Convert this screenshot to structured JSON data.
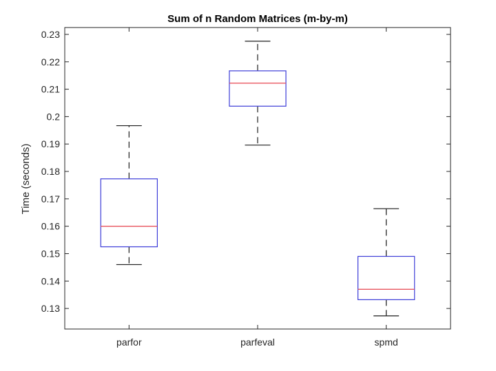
{
  "chart_data": {
    "type": "box",
    "title": "Sum of n Random Matrices (m-by-m)",
    "xlabel": "",
    "ylabel": "Time (seconds)",
    "ylim": [
      0.1225,
      0.2325
    ],
    "yticks": [
      0.13,
      0.14,
      0.15,
      0.16,
      0.17,
      0.18,
      0.19,
      0.2,
      0.21,
      0.22,
      0.23
    ],
    "ytick_labels": [
      "0.13",
      "0.14",
      "0.15",
      "0.16",
      "0.17",
      "0.18",
      "0.19",
      "0.2",
      "0.21",
      "0.22",
      "0.23"
    ],
    "categories": [
      "parfor",
      "parfeval",
      "spmd"
    ],
    "boxes": [
      {
        "category": "parfor",
        "whisker_low": 0.146,
        "q1": 0.1525,
        "median": 0.16,
        "q3": 0.1773,
        "whisker_high": 0.1967
      },
      {
        "category": "parfeval",
        "whisker_low": 0.1896,
        "q1": 0.2038,
        "median": 0.2122,
        "q3": 0.2167,
        "whisker_high": 0.2275
      },
      {
        "category": "spmd",
        "whisker_low": 0.1273,
        "q1": 0.1332,
        "median": 0.137,
        "q3": 0.149,
        "whisker_high": 0.1664
      }
    ],
    "grid": false,
    "colors": {
      "box": "#3b3bd8",
      "median": "#e8535d",
      "whisker": "#1a1a1a",
      "axis": "#262626"
    }
  }
}
